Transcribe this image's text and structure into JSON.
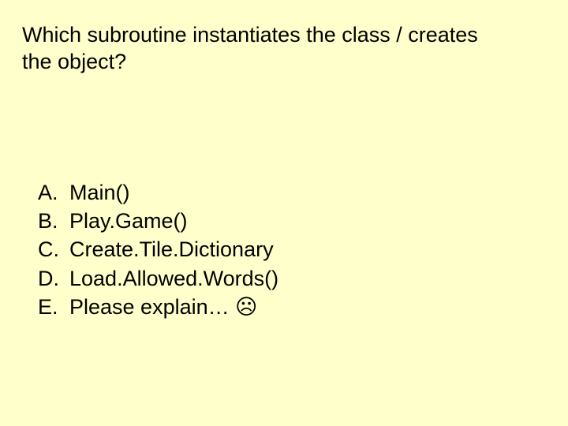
{
  "background_color": "#ffffcc",
  "text_color": "#000000",
  "font_family": "Arial",
  "question_fontsize": 27,
  "option_fontsize": 27,
  "question": "Which subroutine instantiates the class / creates the object?",
  "options": [
    {
      "letter": "A.",
      "text": "Main()"
    },
    {
      "letter": "B.",
      "text": "Play.Game()"
    },
    {
      "letter": "C.",
      "text": "Create.Tile.Dictionary"
    },
    {
      "letter": "D.",
      "text": "Load.Allowed.Words()"
    },
    {
      "letter": "E.",
      "text": "Please explain… ☹"
    }
  ]
}
